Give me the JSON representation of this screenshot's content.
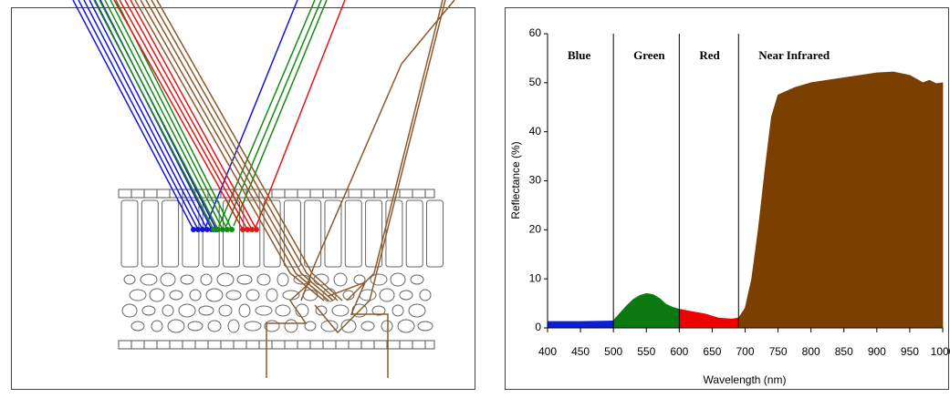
{
  "chart_data": {
    "type": "area",
    "xlabel": "Wavelength (nm)",
    "ylabel": "Reflectance (%)",
    "xlim": [
      400,
      1000
    ],
    "ylim": [
      0,
      60
    ],
    "xticks": [
      400,
      450,
      500,
      550,
      600,
      650,
      700,
      750,
      800,
      850,
      900,
      950,
      1000
    ],
    "yticks": [
      0,
      10,
      20,
      30,
      40,
      50,
      60
    ],
    "series": [
      {
        "name": "Blue",
        "color": "#0a1fd6",
        "x": [
          400,
          450,
          500
        ],
        "values": [
          1.3,
          1.3,
          1.4
        ]
      },
      {
        "name": "Green",
        "color": "#0a7a10",
        "x": [
          500,
          510,
          520,
          530,
          540,
          550,
          560,
          570,
          580,
          590,
          600
        ],
        "values": [
          1.5,
          3,
          4.5,
          5.8,
          6.6,
          7,
          6.8,
          6,
          4.8,
          4.2,
          3.8
        ]
      },
      {
        "name": "Red",
        "color": "#f00000",
        "x": [
          600,
          620,
          640,
          660,
          680,
          690
        ],
        "values": [
          3.8,
          3.3,
          2.8,
          2,
          1.8,
          2
        ]
      },
      {
        "name": "Near Infrared",
        "color": "#7b3f00",
        "x": [
          690,
          700,
          710,
          720,
          730,
          740,
          750,
          775,
          800,
          850,
          900,
          925,
          950,
          970,
          980,
          990,
          1000
        ],
        "values": [
          2,
          4,
          10,
          20,
          32,
          43,
          47.5,
          49,
          50,
          51,
          52,
          52.2,
          51.5,
          50,
          50.5,
          49.8,
          50
        ]
      }
    ]
  }
}
